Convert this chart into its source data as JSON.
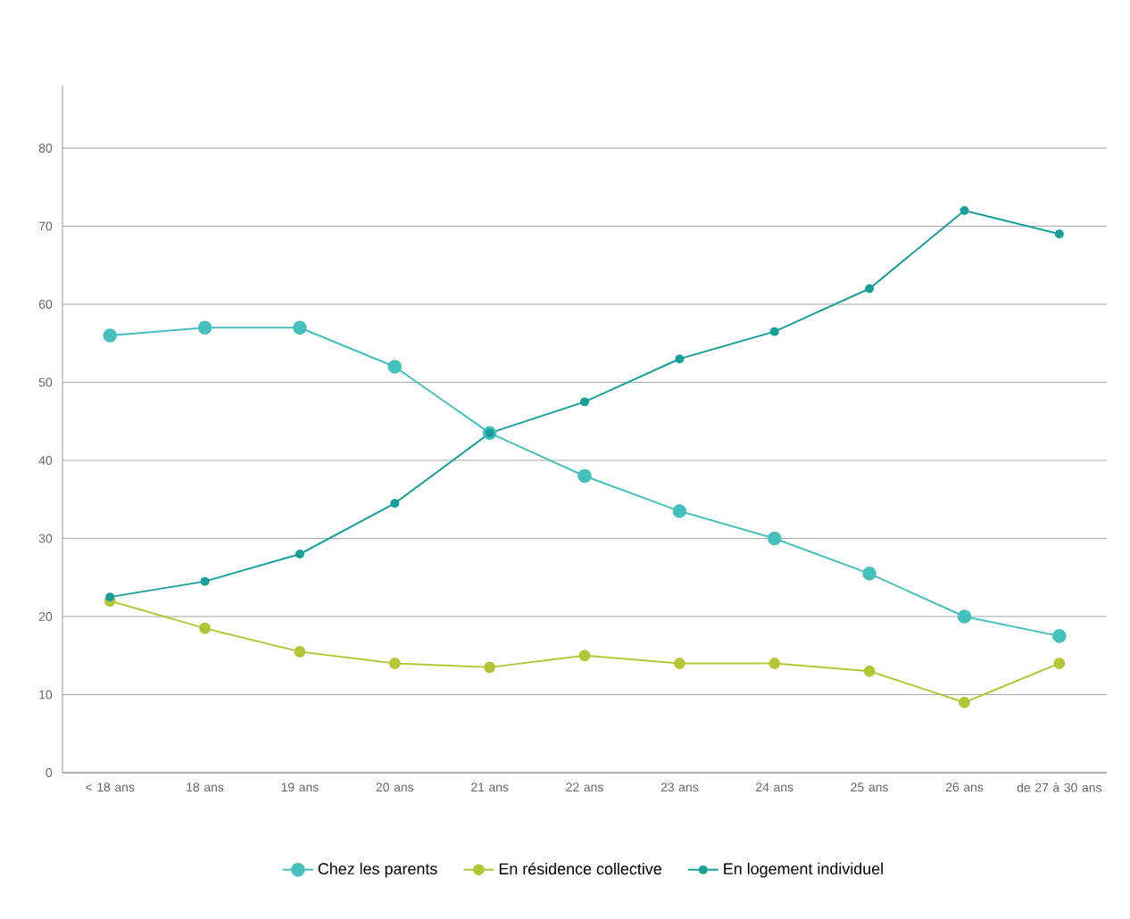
{
  "chart_data": {
    "type": "line",
    "categories": [
      "< 18 ans",
      "18 ans",
      "19 ans",
      "20 ans",
      "21 ans",
      "22 ans",
      "23 ans",
      "24 ans",
      "25 ans",
      "26 ans",
      "de 27 à 30 ans"
    ],
    "series": [
      {
        "name": "Chez les parents",
        "color": "#45c1bd",
        "values": [
          56,
          57,
          57,
          52,
          43.5,
          38,
          33.5,
          30,
          25.5,
          20,
          17.5
        ]
      },
      {
        "name": "En résidence collective",
        "color": "#b3c736",
        "values": [
          22,
          18.5,
          15.5,
          14,
          13.5,
          15,
          14,
          14,
          13,
          9,
          14
        ]
      },
      {
        "name": "En logement individuel",
        "color": "#17a09b",
        "values": [
          22.5,
          24.5,
          28,
          34.5,
          43.5,
          47.5,
          53,
          56.5,
          62,
          72,
          69
        ]
      }
    ],
    "ylim": [
      0,
      88
    ],
    "yticks": [
      0,
      10,
      20,
      30,
      40,
      50,
      60,
      70,
      80
    ],
    "grid": "y",
    "legend": "bottom",
    "marker": "circle",
    "line_style": "solid"
  }
}
